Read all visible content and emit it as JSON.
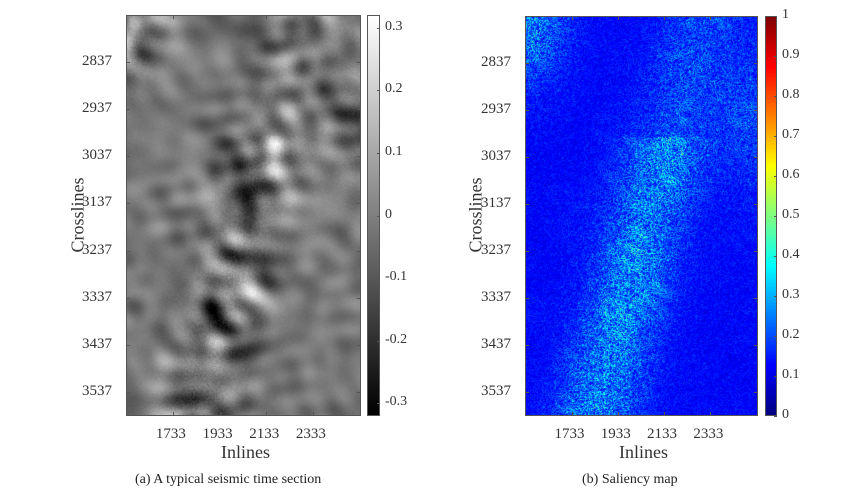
{
  "chart_data": [
    {
      "type": "heatmap",
      "caption": "(a)  A typical seismic time section",
      "xlabel": "Inlines",
      "ylabel": "Crosslines",
      "xticks": [
        "1733",
        "1933",
        "2133",
        "2333"
      ],
      "yticks": [
        "2837",
        "2937",
        "3037",
        "3137",
        "3237",
        "3337",
        "3437",
        "3537"
      ],
      "xlim": [
        1532,
        2539
      ],
      "ylim": [
        2737,
        3588
      ],
      "colormap": "gray",
      "colorbar": {
        "ticks": [
          "0.3",
          "0.2",
          "0.1",
          "0",
          "-0.1",
          "-0.2",
          "-0.3"
        ],
        "tick_values": [
          0.3,
          0.2,
          0.1,
          0,
          -0.1,
          -0.2,
          -0.3
        ],
        "range": [
          -0.32,
          0.32
        ]
      }
    },
    {
      "type": "heatmap",
      "caption": "(b)  Saliency map",
      "xlabel": "Inlines",
      "ylabel": "Crosslines",
      "xticks": [
        "1733",
        "1933",
        "2133",
        "2333"
      ],
      "yticks": [
        "2837",
        "2937",
        "3037",
        "3137",
        "3237",
        "3337",
        "3437",
        "3537"
      ],
      "xlim": [
        1532,
        2539
      ],
      "ylim": [
        2737,
        3588
      ],
      "colormap": "jet",
      "colorbar": {
        "ticks": [
          "1",
          "0.9",
          "0.8",
          "0.7",
          "0.6",
          "0.5",
          "0.4",
          "0.3",
          "0.2",
          "0.1",
          "0"
        ],
        "tick_values": [
          1,
          0.9,
          0.8,
          0.7,
          0.6,
          0.5,
          0.4,
          0.3,
          0.2,
          0.1,
          0
        ],
        "range": [
          0,
          1
        ]
      }
    }
  ]
}
